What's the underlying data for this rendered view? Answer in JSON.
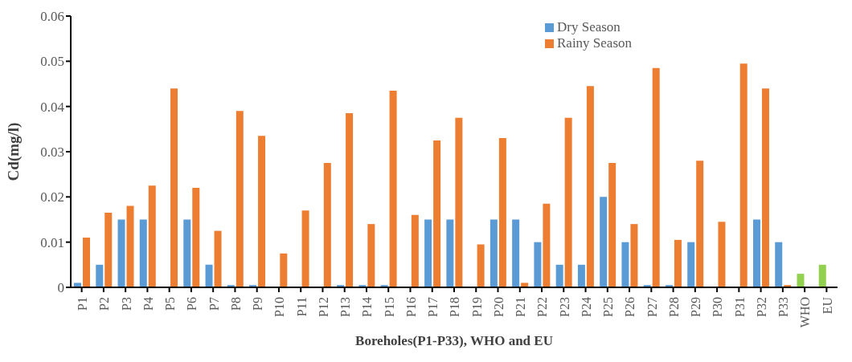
{
  "chart_data": {
    "type": "bar",
    "xlabel": "Boreholes(P1-P33), WHO and EU",
    "ylabel": "Cd(mg/l)",
    "categories": [
      "P1",
      "P2",
      "P3",
      "P4",
      "P5",
      "P6",
      "P7",
      "P8",
      "P9",
      "P10",
      "P11",
      "P12",
      "P13",
      "P14",
      "P15",
      "P16",
      "P17",
      "P18",
      "P19",
      "P20",
      "P21",
      "P22",
      "P23",
      "P24",
      "P25",
      "P26",
      "P27",
      "P28",
      "P29",
      "P30",
      "P31",
      "P32",
      "P33",
      "WHO",
      "EU"
    ],
    "series": [
      {
        "name": "Dry Season",
        "color": "#5b9bd5",
        "colors": [
          "#5b9bd5",
          "#5b9bd5",
          "#5b9bd5",
          "#5b9bd5",
          "#5b9bd5",
          "#5b9bd5",
          "#5b9bd5",
          "#5b9bd5",
          "#5b9bd5",
          "#5b9bd5",
          "#5b9bd5",
          "#5b9bd5",
          "#5b9bd5",
          "#5b9bd5",
          "#5b9bd5",
          "#5b9bd5",
          "#5b9bd5",
          "#5b9bd5",
          "#5b9bd5",
          "#5b9bd5",
          "#5b9bd5",
          "#5b9bd5",
          "#5b9bd5",
          "#5b9bd5",
          "#5b9bd5",
          "#5b9bd5",
          "#5b9bd5",
          "#5b9bd5",
          "#5b9bd5",
          "#5b9bd5",
          "#5b9bd5",
          "#5b9bd5",
          "#5b9bd5",
          "#92d050",
          "#92d050"
        ],
        "values": [
          0.001,
          0.005,
          0.015,
          0.015,
          0,
          0.015,
          0.005,
          0.0005,
          0.0005,
          0,
          0,
          0,
          0.0005,
          0.0005,
          0.0005,
          0,
          0.015,
          0.015,
          0,
          0.015,
          0.015,
          0.01,
          0.005,
          0.005,
          0.02,
          0.01,
          0.0005,
          0.0005,
          0.01,
          0,
          0,
          0.015,
          0.01,
          0.003,
          0.005
        ]
      },
      {
        "name": "Rainy Season",
        "color": "#ed7d31",
        "values": [
          0.011,
          0.0165,
          0.018,
          0.0225,
          0.044,
          0.022,
          0.0125,
          0.039,
          0.0335,
          0.0075,
          0.017,
          0.0275,
          0.0385,
          0.014,
          0.0435,
          0.016,
          0.0325,
          0.0375,
          0.0095,
          0.033,
          0.001,
          0.0185,
          0.0375,
          0.0445,
          0.0275,
          0.014,
          0.0485,
          0.0105,
          0.028,
          0.0145,
          0.0495,
          0.044,
          0.0005,
          null,
          null
        ]
      }
    ],
    "ylim": [
      0,
      0.06
    ],
    "yticks": [
      0,
      0.01,
      0.02,
      0.03,
      0.04,
      0.05,
      0.06
    ],
    "grid": false,
    "legend": "top"
  }
}
